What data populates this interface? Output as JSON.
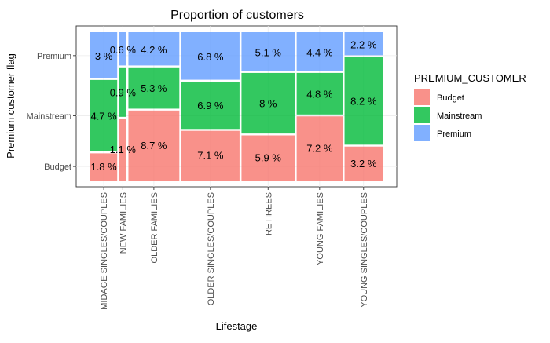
{
  "chart_data": {
    "type": "mosaic",
    "title": "Proportion of customers",
    "xlabel": "Lifestage",
    "ylabel": "Premium customer flag",
    "grid": true,
    "legend_position": "right",
    "legend_title": "PREMIUM_CUSTOMER",
    "y_tick_labels": [
      "Budget",
      "Mainstream",
      "Premium"
    ],
    "x_tick_labels": [
      "MIDAGE SINGLES/COUPLES",
      "NEW FAMILIES",
      "OLDER FAMILIES",
      "OLDER SINGLES/COUPLES",
      "RETIREES",
      "YOUNG FAMILIES",
      "YOUNG SINGLES/COUPLES"
    ],
    "series": [
      {
        "name": "Budget",
        "color": "#F8766D"
      },
      {
        "name": "Mainstream",
        "color": "#00BA38"
      },
      {
        "name": "Premium",
        "color": "#619CFF"
      }
    ],
    "categories": [
      {
        "name": "MIDAGE SINGLES/COUPLES",
        "width": 9.6,
        "values": [
          1.8,
          4.7,
          3.0
        ],
        "labels": [
          "1.8 %",
          "4.7 %",
          "3 %"
        ]
      },
      {
        "name": "NEW FAMILIES",
        "width": 2.6,
        "values": [
          1.1,
          0.9,
          0.6
        ],
        "labels": [
          "1.1 %",
          "0.9 %",
          "0.6 %"
        ]
      },
      {
        "name": "OLDER FAMILIES",
        "width": 18.2,
        "values": [
          8.7,
          5.3,
          4.2
        ],
        "labels": [
          "8.7 %",
          "5.3 %",
          "4.2 %"
        ]
      },
      {
        "name": "OLDER SINGLES/COUPLES",
        "width": 20.8,
        "values": [
          7.1,
          6.9,
          6.8
        ],
        "labels": [
          "7.1 %",
          "6.9 %",
          "6.8 %"
        ]
      },
      {
        "name": "RETIREES",
        "width": 19.0,
        "values": [
          5.9,
          8.0,
          5.1
        ],
        "labels": [
          "5.9 %",
          "8 %",
          "5.1 %"
        ]
      },
      {
        "name": "YOUNG FAMILIES",
        "width": 16.4,
        "values": [
          7.2,
          4.8,
          4.4
        ],
        "labels": [
          "7.2 %",
          "4.8 %",
          "4.4 %"
        ]
      },
      {
        "name": "YOUNG SINGLES/COUPLES",
        "width": 13.6,
        "values": [
          3.2,
          8.2,
          2.2
        ],
        "labels": [
          "3.2 %",
          "8.2 %",
          "2.2 %"
        ]
      }
    ]
  }
}
